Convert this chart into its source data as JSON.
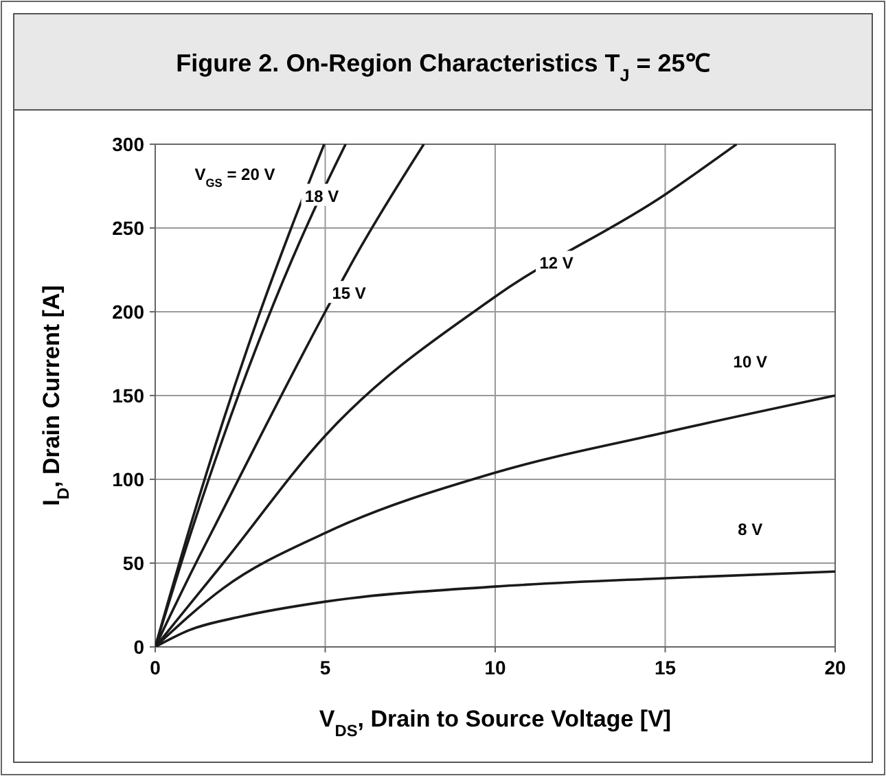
{
  "chart_data": {
    "type": "line",
    "title": "Figure 2. On-Region Characteristics T$_{J}$ = 25℃",
    "xlabel": "V$_{DS}$, Drain to Source Voltage [V]",
    "ylabel": "I$_{D}$, Drain Current [A]",
    "xlim": [
      0,
      20
    ],
    "xticks": [
      0,
      5,
      10,
      15,
      20
    ],
    "ylim": [
      0,
      300
    ],
    "yticks": [
      0,
      50,
      100,
      150,
      200,
      250,
      300
    ],
    "grid": true,
    "line_style": "solid",
    "marker": "none",
    "series": [
      {
        "color": "#1a1a1a",
        "x": [
          0,
          1,
          2,
          3,
          4,
          4.97
        ],
        "values": [
          0,
          70,
          135,
          195,
          250,
          300
        ]
      },
      {
        "color": "#1a1a1a",
        "x": [
          0,
          1,
          2,
          3,
          4,
          5,
          5.6
        ],
        "values": [
          0,
          65,
          125,
          180,
          230,
          275,
          300
        ]
      },
      {
        "color": "#1a1a1a",
        "x": [
          0,
          1,
          2,
          3,
          5,
          6,
          7.9
        ],
        "values": [
          0,
          42,
          82,
          122,
          200,
          237,
          300
        ]
      },
      {
        "color": "#1a1a1a",
        "x": [
          0,
          2,
          5,
          10,
          15,
          17.1
        ],
        "values": [
          0,
          50,
          126,
          209,
          270,
          300
        ]
      },
      {
        "color": "#1a1a1a",
        "x": [
          0,
          2,
          5,
          10,
          15,
          20
        ],
        "values": [
          0,
          35,
          68,
          104,
          128,
          150
        ]
      },
      {
        "color": "#1a1a1a",
        "x": [
          0,
          1,
          2.5,
          5,
          10,
          15,
          20
        ],
        "values": [
          0,
          10,
          18,
          27,
          36,
          41,
          45
        ]
      }
    ],
    "annotations": [
      "V$_{GS}$ = 20 V",
      {
        "text": "18 V",
        "x": 4.9,
        "y": 269
      },
      {
        "text": "15 V",
        "x": 5.7,
        "y": 211
      },
      {
        "text": "12 V",
        "x": 11.8,
        "y": 229
      },
      {
        "text": "10 V",
        "x": 17.5,
        "y": 170
      },
      {
        "text": "8 V",
        "x": 17.5,
        "y": 70
      }
    ]
  }
}
